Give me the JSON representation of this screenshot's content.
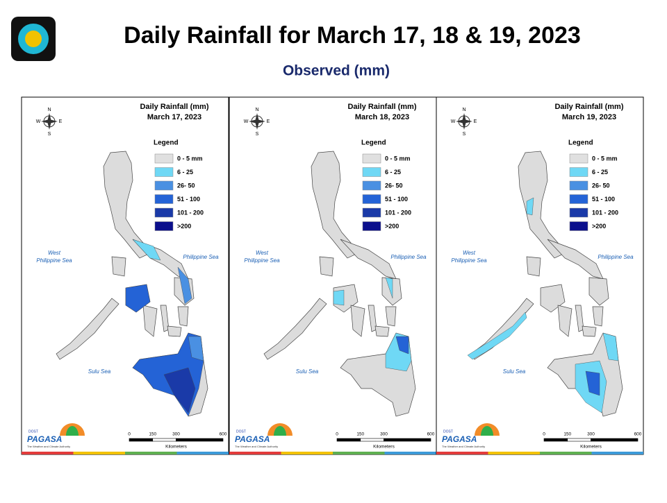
{
  "header": {
    "title": "Daily Rainfall for March 17, 18 & 19, 2023",
    "subtitle": "Observed (mm)"
  },
  "panels": [
    {
      "title": "Daily Rainfall (mm)",
      "date": "March 17, 2023",
      "legend_title": "Legend",
      "legend": [
        {
          "label": "0 - 5 mm",
          "color": "#e0e0e0"
        },
        {
          "label": "6 - 25",
          "color": "#6fd8f5"
        },
        {
          "label": "26- 50",
          "color": "#4a90e2"
        },
        {
          "label": "51 - 100",
          "color": "#2463d6"
        },
        {
          "label": "101 - 200",
          "color": "#1a3aa8"
        },
        {
          "label": ">200",
          "color": "#0b0f8c"
        }
      ],
      "compass": [
        "N",
        "W",
        "E",
        "S"
      ],
      "seas": [
        [
          "West",
          "Philippine Sea"
        ],
        [
          "Philippine Sea"
        ],
        [
          "Sulu Sea"
        ]
      ],
      "scale": {
        "ticks": [
          0,
          150,
          300,
          600
        ],
        "unit": "Kilometers"
      },
      "logo": {
        "agency": "DOST",
        "name": "PAGASA",
        "tagline": "The Weather and Climate Authority"
      }
    },
    {
      "title": "Daily Rainfall (mm)",
      "date": "March 18, 2023",
      "legend_title": "Legend",
      "legend": [
        {
          "label": "0 - 5 mm",
          "color": "#e0e0e0"
        },
        {
          "label": "6 - 25",
          "color": "#6fd8f5"
        },
        {
          "label": "26- 50",
          "color": "#4a90e2"
        },
        {
          "label": "51 - 100",
          "color": "#2463d6"
        },
        {
          "label": "101 - 200",
          "color": "#1a3aa8"
        },
        {
          "label": ">200",
          "color": "#0b0f8c"
        }
      ],
      "compass": [
        "N",
        "W",
        "E",
        "S"
      ],
      "seas": [
        [
          "West",
          "Philippine Sea"
        ],
        [
          "Philippine Sea"
        ],
        [
          "Sulu Sea"
        ]
      ],
      "scale": {
        "ticks": [
          0,
          150,
          300,
          600
        ],
        "unit": "Kilometers"
      },
      "logo": {
        "agency": "DOST",
        "name": "PAGASA",
        "tagline": "The Weather and Climate Authority"
      }
    },
    {
      "title": "Daily Rainfall (mm)",
      "date": "March 19, 2023",
      "legend_title": "Legend",
      "legend": [
        {
          "label": "0 - 5 mm",
          "color": "#e0e0e0"
        },
        {
          "label": "6 - 25",
          "color": "#6fd8f5"
        },
        {
          "label": "26- 50",
          "color": "#4a90e2"
        },
        {
          "label": "51 - 100",
          "color": "#2463d6"
        },
        {
          "label": "101 - 200",
          "color": "#1a3aa8"
        },
        {
          "label": ">200",
          "color": "#0b0f8c"
        }
      ],
      "compass": [
        "N",
        "W",
        "E",
        "S"
      ],
      "seas": [
        [
          "West",
          "Philippine Sea"
        ],
        [
          "Philippine Sea"
        ],
        [
          "Sulu Sea"
        ]
      ],
      "scale": {
        "ticks": [
          0,
          150,
          300,
          600
        ],
        "unit": "Kilometers"
      },
      "logo": {
        "agency": "DOST",
        "name": "PAGASA",
        "tagline": "The Weather and Climate Authority"
      }
    }
  ]
}
